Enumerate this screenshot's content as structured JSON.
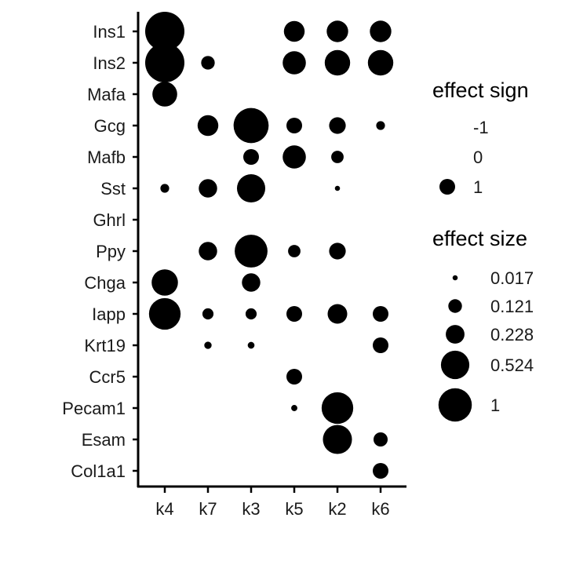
{
  "chart_data": {
    "type": "scatter",
    "x_categories": [
      "k4",
      "k7",
      "k3",
      "k5",
      "k2",
      "k6"
    ],
    "y_categories": [
      "Ins1",
      "Ins2",
      "Mafa",
      "Gcg",
      "Mafb",
      "Sst",
      "Ghrl",
      "Ppy",
      "Chga",
      "Iapp",
      "Krt19",
      "Ccr5",
      "Pecam1",
      "Esam",
      "Col1a1"
    ],
    "points": [
      {
        "x": "k4",
        "y": "Ins1",
        "size": 1.0,
        "sign": 1
      },
      {
        "x": "k5",
        "y": "Ins1",
        "size": 0.28,
        "sign": 1
      },
      {
        "x": "k2",
        "y": "Ins1",
        "size": 0.3,
        "sign": 1
      },
      {
        "x": "k6",
        "y": "Ins1",
        "size": 0.3,
        "sign": 1
      },
      {
        "x": "k4",
        "y": "Ins2",
        "size": 1.0,
        "sign": 1
      },
      {
        "x": "k7",
        "y": "Ins2",
        "size": 0.12,
        "sign": 1
      },
      {
        "x": "k5",
        "y": "Ins2",
        "size": 0.35,
        "sign": 1
      },
      {
        "x": "k2",
        "y": "Ins2",
        "size": 0.42,
        "sign": 1
      },
      {
        "x": "k6",
        "y": "Ins2",
        "size": 0.42,
        "sign": 1
      },
      {
        "x": "k4",
        "y": "Mafa",
        "size": 0.4,
        "sign": 1
      },
      {
        "x": "k7",
        "y": "Gcg",
        "size": 0.28,
        "sign": 1
      },
      {
        "x": "k3",
        "y": "Gcg",
        "size": 0.8,
        "sign": 1
      },
      {
        "x": "k5",
        "y": "Gcg",
        "size": 0.16,
        "sign": 1
      },
      {
        "x": "k2",
        "y": "Gcg",
        "size": 0.18,
        "sign": 1
      },
      {
        "x": "k6",
        "y": "Gcg",
        "size": 0.05,
        "sign": 1
      },
      {
        "x": "k3",
        "y": "Mafb",
        "size": 0.16,
        "sign": 1
      },
      {
        "x": "k5",
        "y": "Mafb",
        "size": 0.35,
        "sign": 1
      },
      {
        "x": "k2",
        "y": "Mafb",
        "size": 0.1,
        "sign": 1
      },
      {
        "x": "k4",
        "y": "Sst",
        "size": 0.05,
        "sign": 1
      },
      {
        "x": "k7",
        "y": "Sst",
        "size": 0.22,
        "sign": 1
      },
      {
        "x": "k3",
        "y": "Sst",
        "size": 0.52,
        "sign": 1
      },
      {
        "x": "k2",
        "y": "Sst",
        "size": 0.017,
        "sign": 1
      },
      {
        "x": "k7",
        "y": "Ppy",
        "size": 0.22,
        "sign": 1
      },
      {
        "x": "k3",
        "y": "Ppy",
        "size": 0.7,
        "sign": 1
      },
      {
        "x": "k5",
        "y": "Ppy",
        "size": 0.1,
        "sign": 1
      },
      {
        "x": "k2",
        "y": "Ppy",
        "size": 0.18,
        "sign": 1
      },
      {
        "x": "k4",
        "y": "Chga",
        "size": 0.45,
        "sign": 1
      },
      {
        "x": "k3",
        "y": "Chga",
        "size": 0.22,
        "sign": 1
      },
      {
        "x": "k4",
        "y": "Iapp",
        "size": 0.65,
        "sign": 1
      },
      {
        "x": "k7",
        "y": "Iapp",
        "size": 0.08,
        "sign": 1
      },
      {
        "x": "k3",
        "y": "Iapp",
        "size": 0.08,
        "sign": 1
      },
      {
        "x": "k5",
        "y": "Iapp",
        "size": 0.16,
        "sign": 1
      },
      {
        "x": "k2",
        "y": "Iapp",
        "size": 0.25,
        "sign": 1
      },
      {
        "x": "k6",
        "y": "Iapp",
        "size": 0.16,
        "sign": 1
      },
      {
        "x": "k7",
        "y": "Krt19",
        "size": 0.035,
        "sign": 1
      },
      {
        "x": "k3",
        "y": "Krt19",
        "size": 0.03,
        "sign": 1
      },
      {
        "x": "k6",
        "y": "Krt19",
        "size": 0.16,
        "sign": 1
      },
      {
        "x": "k5",
        "y": "Ccr5",
        "size": 0.16,
        "sign": 1
      },
      {
        "x": "k5",
        "y": "Pecam1",
        "size": 0.025,
        "sign": 1
      },
      {
        "x": "k2",
        "y": "Pecam1",
        "size": 0.65,
        "sign": 1
      },
      {
        "x": "k2",
        "y": "Esam",
        "size": 0.55,
        "sign": 1
      },
      {
        "x": "k6",
        "y": "Esam",
        "size": 0.13,
        "sign": 1
      },
      {
        "x": "k6",
        "y": "Col1a1",
        "size": 0.16,
        "sign": 1
      }
    ],
    "legend": {
      "sign_title": "effect sign",
      "sign_entries": [
        "-1",
        "0",
        "1"
      ],
      "size_title": "effect size",
      "size_entries": [
        "0.017",
        "0.121",
        "0.228",
        "0.524",
        "1"
      ],
      "size_values": [
        0.017,
        0.121,
        0.228,
        0.524,
        1
      ],
      "placement": "right"
    },
    "colors": {
      "points": "#000000",
      "axis": "#000000"
    }
  }
}
